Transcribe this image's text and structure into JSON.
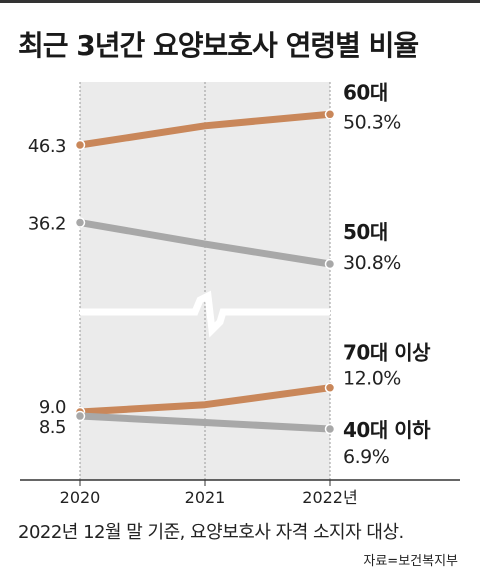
{
  "title": "최근 3년간 요양보호사 연령별 비율",
  "note": "2022년 12월 말 기준, 요양보호사 자격 소지자 대상.",
  "source": "자료=보건복지부",
  "colors": {
    "orange": "#c9875a",
    "gray": "#a8a8a8",
    "panel": "#ebebeb"
  },
  "chart_data": {
    "type": "line",
    "categories": [
      "2020",
      "2021",
      "2022년"
    ],
    "axis_break": true,
    "grid": false,
    "series": [
      {
        "name": "60대",
        "values": [
          46.3,
          48.8,
          50.3
        ],
        "start_label": "46.3",
        "end_label": "50.3%",
        "color": "#c9875a"
      },
      {
        "name": "50대",
        "values": [
          36.2,
          33.4,
          30.8
        ],
        "start_label": "36.2",
        "end_label": "30.8%",
        "color": "#a8a8a8"
      },
      {
        "name": "70대 이상",
        "values": [
          9.0,
          9.9,
          12.0
        ],
        "start_label": "9.0",
        "end_label": "12.0%",
        "color": "#c9875a"
      },
      {
        "name": "40대 이하",
        "values": [
          8.5,
          7.7,
          6.9
        ],
        "start_label": "8.5",
        "end_label": "6.9%",
        "color": "#a8a8a8"
      }
    ]
  }
}
